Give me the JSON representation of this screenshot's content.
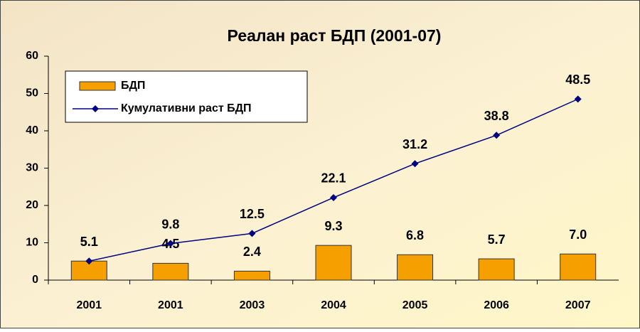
{
  "chart_data": {
    "type": "combo",
    "title": "Реалан раст БДП (2001-07)",
    "categories": [
      "2001",
      "2001",
      "2003",
      "2004",
      "2005",
      "2006",
      "2007"
    ],
    "series": [
      {
        "name": "БДП",
        "type": "bar",
        "color": "#F5A000",
        "values": [
          5.1,
          4.5,
          2.4,
          9.3,
          6.8,
          5.7,
          7.0
        ],
        "value_labels": [
          "5.1",
          "4.5",
          "2.4",
          "9.3",
          "6.8",
          "5.7",
          "7.0"
        ]
      },
      {
        "name": "Кумулативни раст БДП",
        "type": "line",
        "color": "#000080",
        "values": [
          5.1,
          9.8,
          12.5,
          22.1,
          31.2,
          38.8,
          48.5
        ]
      }
    ],
    "ylim": [
      0,
      60
    ],
    "yticks": [
      0,
      10,
      20,
      30,
      40,
      50,
      60
    ],
    "grid": false,
    "legend": "top-left"
  }
}
